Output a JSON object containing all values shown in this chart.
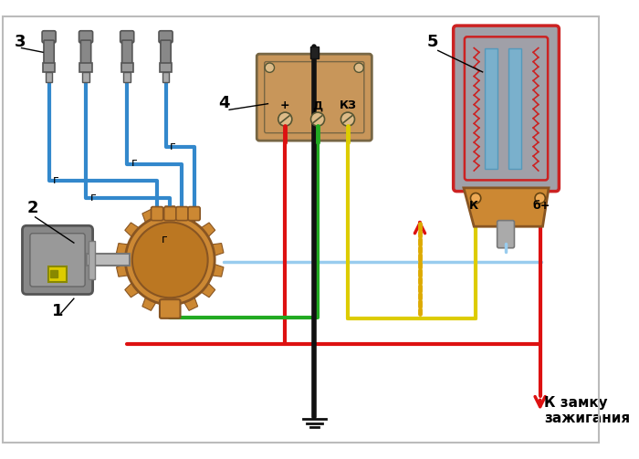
{
  "bg_color": "#ffffff",
  "border_color": "#bbbbbb",
  "wire_red": "#dd1111",
  "wire_green": "#22aa22",
  "wire_yellow": "#ddcc00",
  "wire_black": "#111111",
  "wire_blue": "#3388cc",
  "wire_light_blue": "#99ccee",
  "wire_dot_yellow": "#ddaa00",
  "coil_gray": "#a0a0a8",
  "coil_red_border": "#cc2222",
  "coil_blue_core": "#7ab0cc",
  "coil_orange": "#cc8833",
  "module_tan": "#c8965a",
  "module_dark": "#776644",
  "gear_orange": "#cc8833",
  "motor_gray": "#888888",
  "label_3": "3",
  "label_2": "2",
  "label_1": "1",
  "label_4": "4",
  "label_5": "5",
  "label_plus": "+",
  "label_d": "Д",
  "label_kz": "КЗ",
  "label_k": "К",
  "label_bplus": "б+",
  "label_g": "г",
  "label_bottom": "К замку\nзажигания"
}
